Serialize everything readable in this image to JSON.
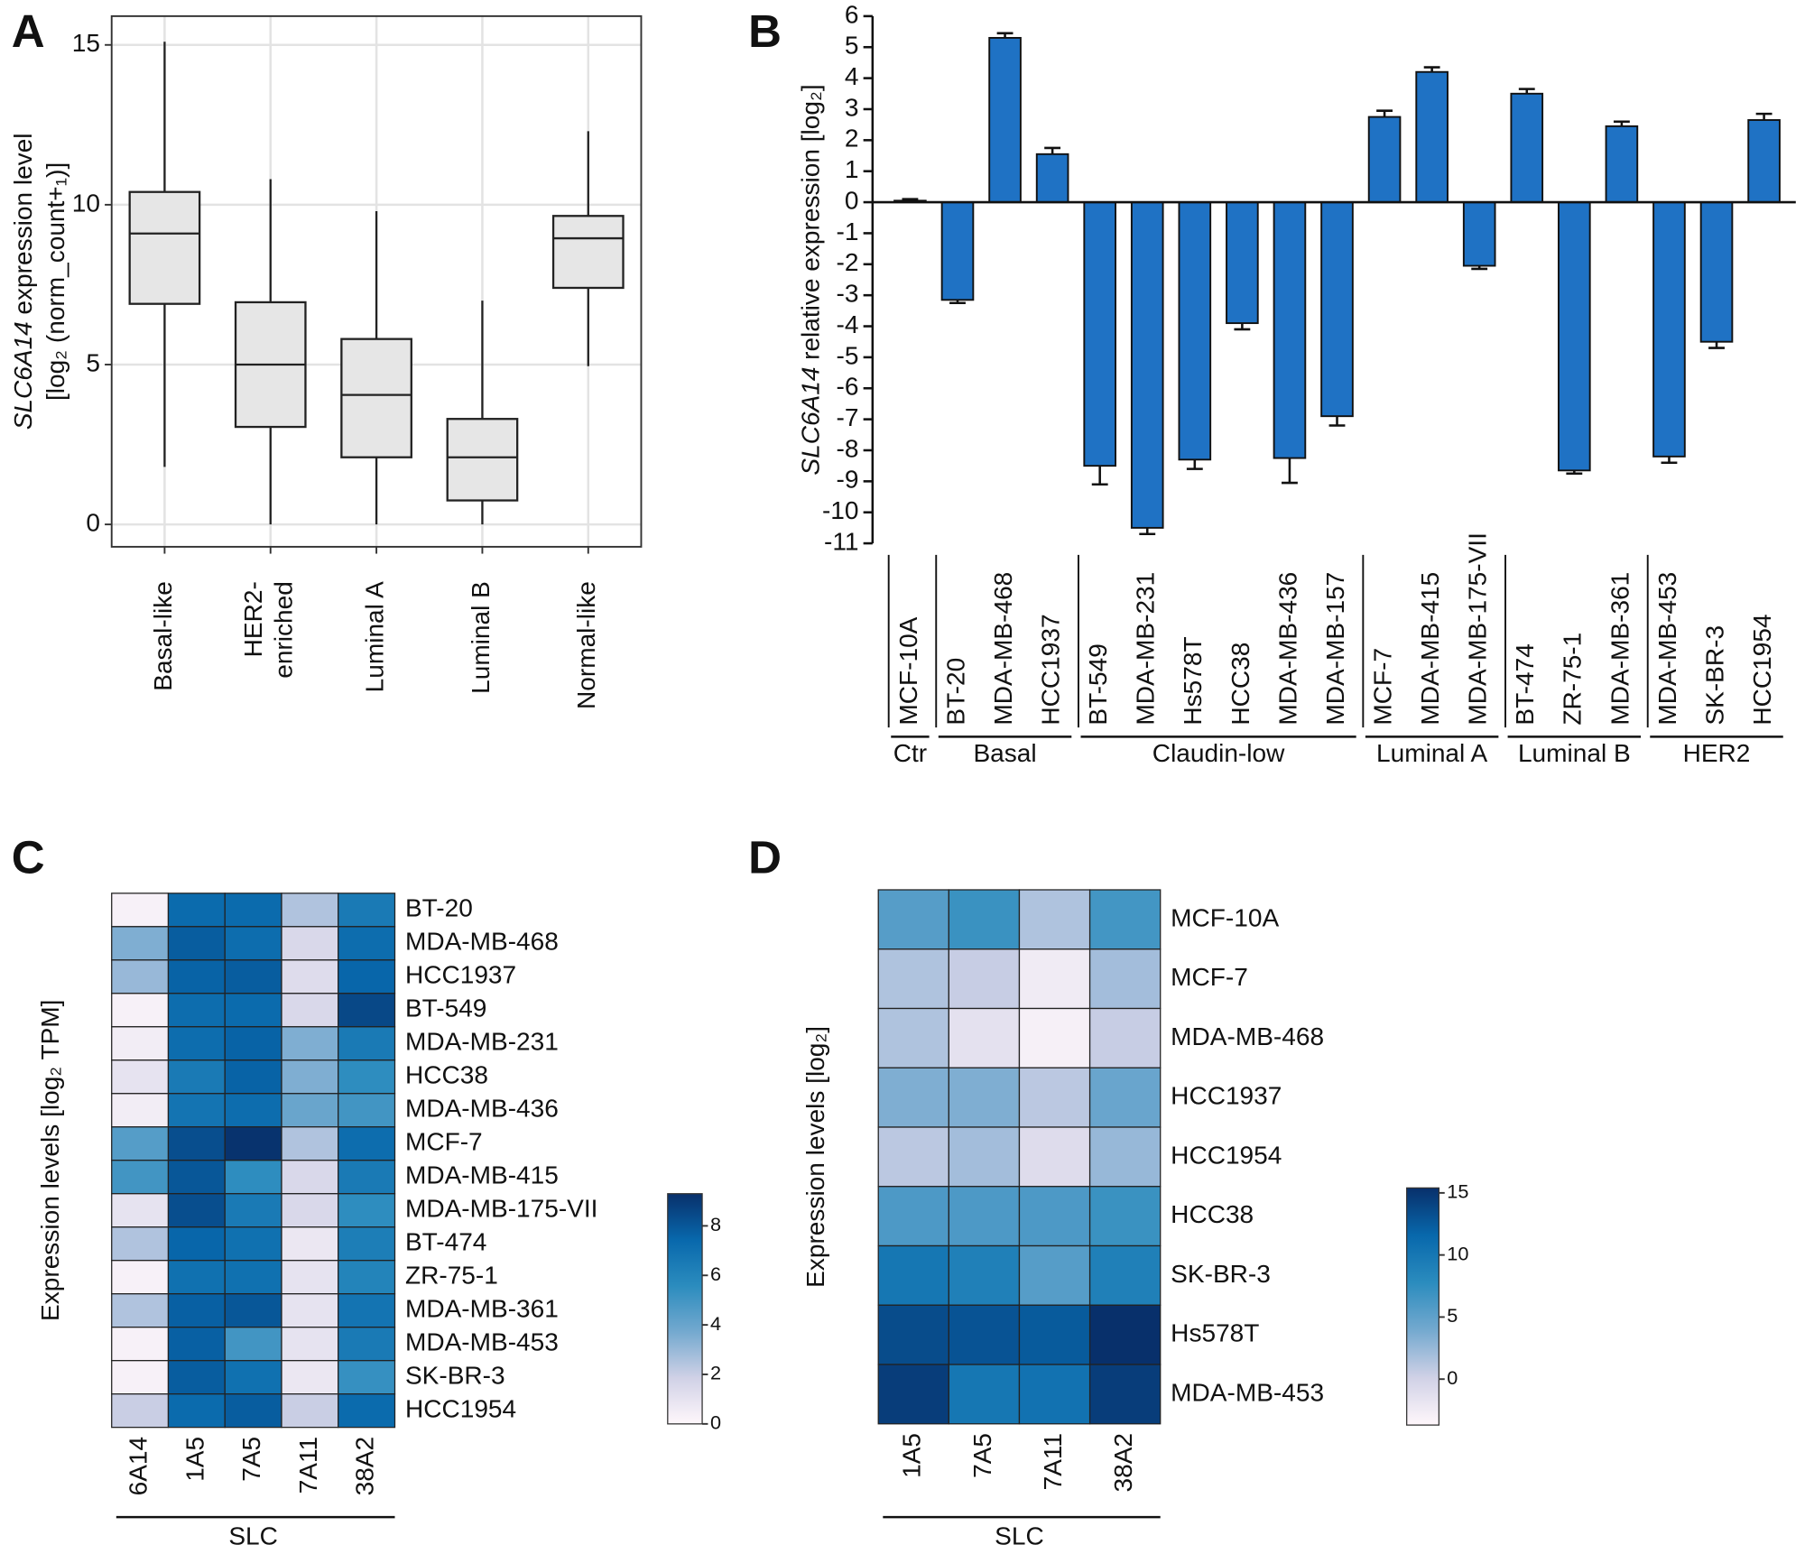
{
  "chart_data": [
    {
      "type": "box",
      "panel": "A",
      "y_label_gene": "SLC6A14",
      "y_label_rest": "expression level",
      "y_label_line2": "[log₂ (norm_count+₁)]",
      "categories": [
        "Basal-like",
        "HER2-\nenriched",
        "Luminal A",
        "Luminal B",
        "Normal-like"
      ],
      "boxes": [
        {
          "low": 1.8,
          "q1": 6.9,
          "median": 9.1,
          "q3": 10.4,
          "high": 15.1
        },
        {
          "low": 0,
          "q1": 3.05,
          "median": 5.0,
          "q3": 6.95,
          "high": 10.8
        },
        {
          "low": 0,
          "q1": 2.1,
          "median": 4.05,
          "q3": 5.8,
          "high": 9.8
        },
        {
          "low": 0,
          "q1": 0.75,
          "median": 2.1,
          "q3": 3.3,
          "high": 7.0
        },
        {
          "low": 4.95,
          "q1": 7.4,
          "median": 8.95,
          "q3": 9.65,
          "high": 12.3
        }
      ],
      "ylim": [
        -0.7,
        15.9
      ],
      "yticks": [
        0,
        5,
        10,
        15
      ],
      "grid": true,
      "box_color": "#e6e6e6"
    },
    {
      "type": "bar",
      "panel": "B",
      "y_label_gene": "SLC6A14",
      "y_label_rest": "relative expression [log₂]",
      "categories": [
        "MCF-10A",
        "BT-20",
        "MDA-MB-468",
        "HCC1937",
        "BT-549",
        "MDA-MB-231",
        "Hs578T",
        "HCC38",
        "MDA-MB-436",
        "MDA-MB-157",
        "MCF-7",
        "MDA-MB-415",
        "MDA-MB-175-VII",
        "BT-474",
        "ZR-75-1",
        "MDA-MB-361",
        "MDA-MB-453",
        "SK-BR-3",
        "HCC1954"
      ],
      "category_groups": [
        "Ctr",
        "Basal",
        "Basal",
        "Basal",
        "Claudin-low",
        "Claudin-low",
        "Claudin-low",
        "Claudin-low",
        "Claudin-low",
        "Claudin-low",
        "Luminal A",
        "Luminal A",
        "Luminal A",
        "Luminal B",
        "Luminal B",
        "Luminal B",
        "HER2",
        "HER2",
        "HER2"
      ],
      "values": [
        0.05,
        -3.15,
        5.3,
        1.55,
        -8.5,
        -10.5,
        -8.3,
        -3.9,
        -8.25,
        -6.9,
        2.75,
        4.2,
        -2.05,
        3.5,
        -8.65,
        2.45,
        -8.2,
        -4.5,
        2.65
      ],
      "errors": [
        0.05,
        0.1,
        0.15,
        0.2,
        0.6,
        0.2,
        0.3,
        0.2,
        0.8,
        0.3,
        0.2,
        0.15,
        0.1,
        0.15,
        0.1,
        0.15,
        0.2,
        0.2,
        0.2
      ],
      "color": "#1f72c4",
      "ylim": [
        -11,
        6
      ],
      "yticks": [
        -11,
        -10,
        -9,
        -8,
        -7,
        -6,
        -5,
        -4,
        -3,
        -2,
        -1,
        0,
        1,
        2,
        3,
        4,
        5,
        6
      ]
    },
    {
      "type": "heatmap",
      "panel": "C",
      "y_label": "Expression levels [log₂ TPM]",
      "rows": [
        "BT-20",
        "MDA-MB-468",
        "HCC1937",
        "BT-549",
        "MDA-MB-231",
        "HCC38",
        "MDA-MB-436",
        "MCF-7",
        "MDA-MB-415",
        "MDA-MB-175-VII",
        "BT-474",
        "ZR-75-1",
        "MDA-MB-361",
        "MDA-MB-453",
        "SK-BR-3",
        "HCC1954"
      ],
      "columns": [
        "6A14",
        "1A5",
        "7A5",
        "7A11",
        "38A2"
      ],
      "column_group": "SLC",
      "values": [
        [
          0.3,
          7.3,
          7.3,
          2.5,
          6.5
        ],
        [
          3.5,
          7.8,
          7.2,
          1.5,
          7.2
        ],
        [
          3.0,
          7.6,
          7.8,
          1.3,
          7.5
        ],
        [
          0.3,
          7.2,
          7.3,
          1.5,
          8.5
        ],
        [
          0.5,
          7.2,
          7.6,
          3.5,
          6.5
        ],
        [
          1.0,
          6.5,
          7.6,
          3.5,
          5.5
        ],
        [
          0.5,
          6.8,
          7.2,
          4.0,
          5.0
        ],
        [
          4.5,
          8.3,
          9.2,
          2.5,
          7.2
        ],
        [
          5.0,
          8.0,
          5.5,
          1.5,
          6.5
        ],
        [
          1.0,
          8.3,
          6.5,
          1.5,
          5.5
        ],
        [
          2.5,
          7.5,
          7.0,
          0.8,
          6.3
        ],
        [
          0.3,
          7.0,
          7.0,
          1.0,
          6.0
        ],
        [
          2.5,
          7.7,
          8.0,
          1.0,
          6.8
        ],
        [
          0.3,
          7.7,
          5.0,
          1.0,
          6.5
        ],
        [
          0.3,
          7.8,
          7.0,
          0.8,
          5.3
        ],
        [
          2.0,
          7.3,
          7.8,
          2.0,
          7.3
        ]
      ],
      "clim": [
        0,
        9.3
      ],
      "colorbar_ticks": [
        0,
        2,
        4,
        6,
        8
      ],
      "colormap": [
        "#fff7fb",
        "#d0d1e6",
        "#74a9cf",
        "#2b8cbe",
        "#0868ac",
        "#08306b"
      ]
    },
    {
      "type": "heatmap",
      "panel": "D",
      "y_label": "Expression levels [log₂]",
      "rows": [
        "MCF-10A",
        "MCF-7",
        "MDA-MB-468",
        "HCC1937",
        "HCC1954",
        "HCC38",
        "SK-BR-3",
        "Hs578T",
        "MDA-MB-453"
      ],
      "columns": [
        "1A5",
        "7A5",
        "7A11",
        "38A2"
      ],
      "column_group": "SLC",
      "values": [
        [
          5.5,
          7,
          1.5,
          6.5
        ],
        [
          1.5,
          0.5,
          -2.5,
          2
        ],
        [
          1.5,
          -1.5,
          -3.0,
          0.5
        ],
        [
          3.5,
          3.5,
          1.0,
          4.5
        ],
        [
          1.0,
          2.0,
          -1.0,
          2.5
        ],
        [
          6,
          6,
          6,
          7
        ],
        [
          10,
          9,
          5.5,
          9
        ],
        [
          13.5,
          13,
          12.5,
          15.5
        ],
        [
          14.5,
          10,
          10.5,
          14.5
        ]
      ],
      "clim": [
        -3.7,
        15.4
      ],
      "colorbar_ticks": [
        0,
        5,
        10,
        15
      ],
      "colormap": [
        "#fff7fb",
        "#d0d1e6",
        "#74a9cf",
        "#2b8cbe",
        "#0868ac",
        "#08306b"
      ]
    }
  ]
}
